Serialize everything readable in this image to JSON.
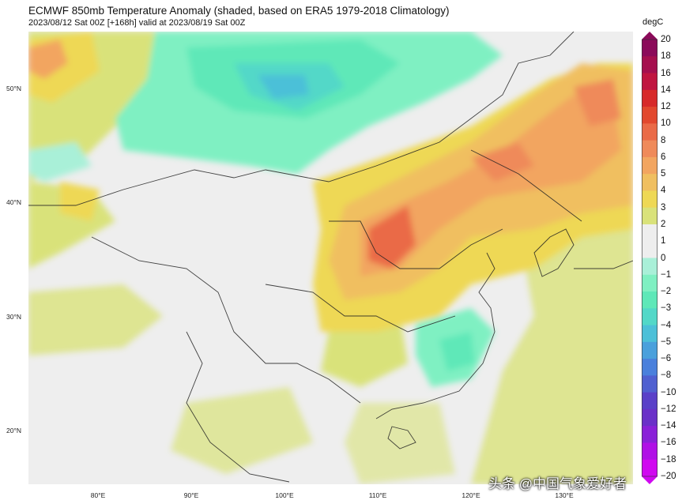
{
  "title": "ECMWF 850mb Temperature Anomaly (shaded, based on ERA5 1979-2018 Climatology)",
  "subtitle": "2023/08/12 Sat 00Z [+168h] valid at 2023/08/19 Sat 00Z",
  "lat_labels": [
    "50°N",
    "40°N",
    "30°N",
    "20°N"
  ],
  "lon_labels": [
    "80°E",
    "90°E",
    "100°E",
    "110°E",
    "120°E",
    "130°E"
  ],
  "colorbar": {
    "unit": "degC",
    "labels": [
      "20",
      "18",
      "16",
      "14",
      "12",
      "10",
      "8",
      "6",
      "5",
      "4",
      "3",
      "2",
      "1",
      "0",
      "−1",
      "−2",
      "−3",
      "−4",
      "−5",
      "−6",
      "−8",
      "−10",
      "−12",
      "−14",
      "−16",
      "−18",
      "−20"
    ],
    "colors": [
      "#8b0a5a",
      "#a50f4e",
      "#c01540",
      "#d72a2a",
      "#e2482e",
      "#ea6a47",
      "#ef8a5a",
      "#f2a560",
      "#f0bf60",
      "#eed855",
      "#d9e27a",
      "#eeeeee",
      "#eeeeee",
      "#a9f0d8",
      "#7ff0c2",
      "#5ee8b8",
      "#52d8c8",
      "#4cc0d8",
      "#4aa0dc",
      "#4a80dc",
      "#5060d0",
      "#5a40c8",
      "#6a30c8",
      "#8a20d8",
      "#b010e6",
      "#d008f0"
    ]
  },
  "watermark": "头条 @中国气象爱好者"
}
